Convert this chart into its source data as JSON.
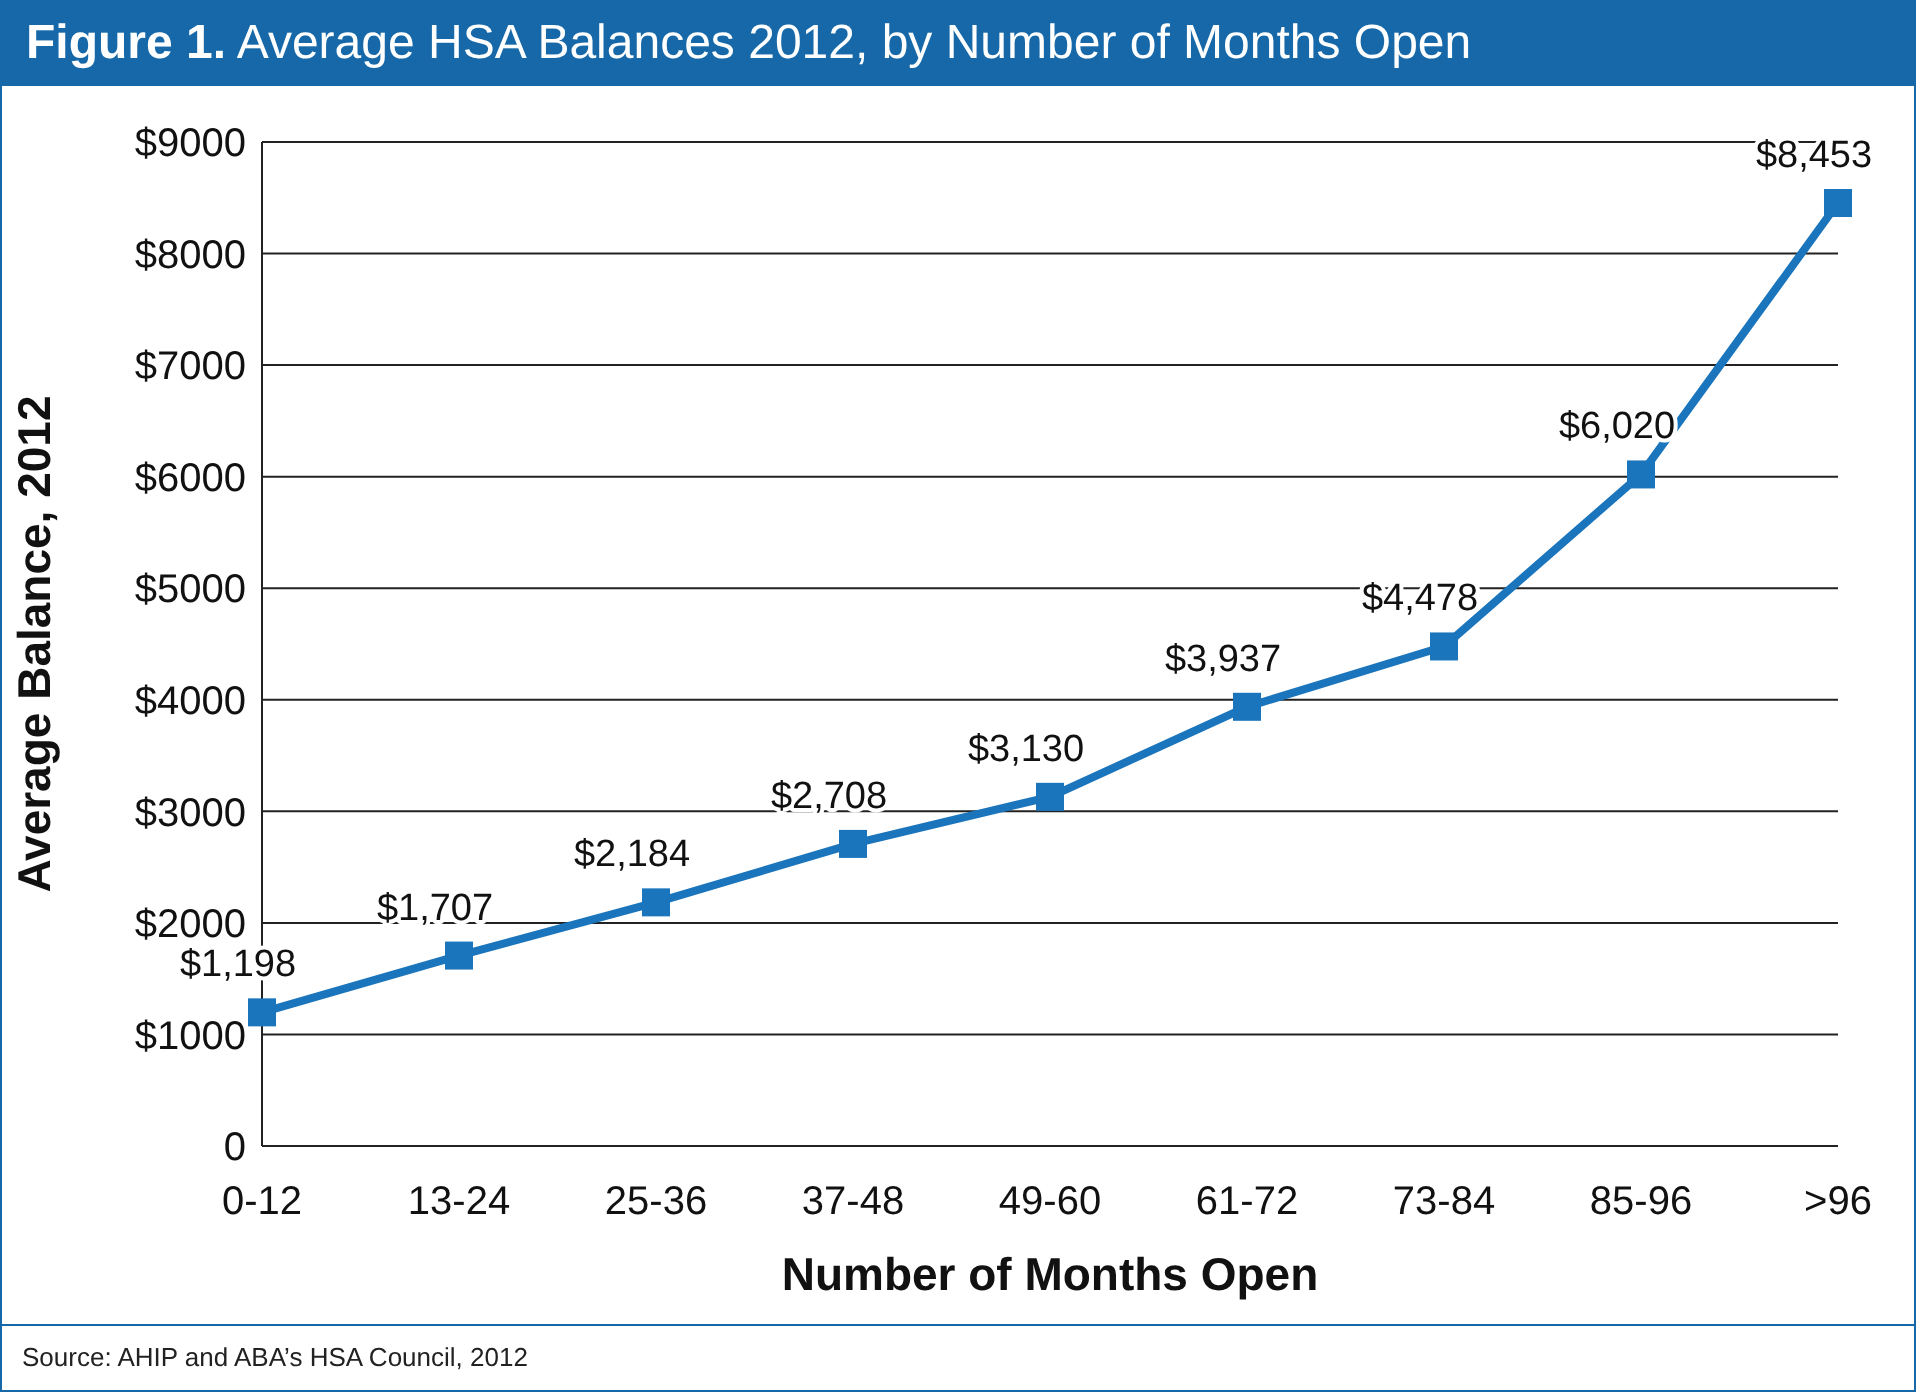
{
  "chart_data": {
    "type": "line",
    "title": "Figure 1. Average HSA Balances 2012, by Number of Months Open",
    "xlabel": "Number of Months Open",
    "ylabel": "Average Balance, 2012",
    "categories": [
      "0-12",
      "13-24",
      "25-36",
      "37-48",
      "49-60",
      "61-72",
      "73-84",
      "85-96",
      ">96"
    ],
    "series": [
      {
        "color": "#1a75bc",
        "values": [
          1198,
          1707,
          2184,
          2708,
          3130,
          3937,
          4478,
          6020,
          8453
        ],
        "value_labels": [
          "$1,198",
          "$1,707",
          "$2,184",
          "$2,708",
          "$3,130",
          "$3,937",
          "$4,478",
          "$6,020",
          "$8,453"
        ]
      }
    ],
    "ylim": [
      0,
      9000
    ],
    "yticks": [
      0,
      {
        "value": 1000,
        "label": "$1000"
      },
      {
        "value": 2000,
        "label": "$2000"
      },
      {
        "value": 3000,
        "label": "$3000"
      },
      {
        "value": 4000,
        "label": "$4000"
      },
      {
        "value": 5000,
        "label": "$5000"
      },
      {
        "value": 6000,
        "label": "$6000"
      },
      {
        "value": 7000,
        "label": "$7000"
      },
      {
        "value": 8000,
        "label": "$8000"
      },
      {
        "value": 9000,
        "label": "$9000"
      }
    ],
    "grid": "y",
    "marker": "square",
    "line_style": "solid",
    "annotations": [
      "Source: AHIP and ABA’s HSA Council, 2012"
    ]
  }
}
